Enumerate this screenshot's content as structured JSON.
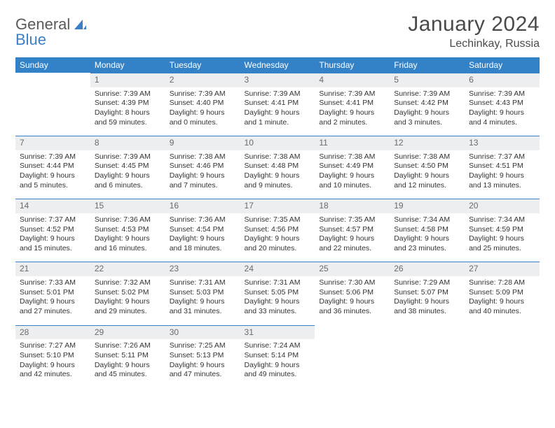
{
  "logo": {
    "word1": "General",
    "word2": "Blue"
  },
  "title": "January 2024",
  "location": "Lechinkay, Russia",
  "colors": {
    "header_bg": "#3382c8",
    "header_text": "#ffffff",
    "daynum_bg": "#eceef0",
    "daynum_text": "#6a6a6a",
    "border_accent": "#3b7fc4",
    "body_text": "#333333",
    "title_text": "#4a4a4a"
  },
  "weekdays": [
    "Sunday",
    "Monday",
    "Tuesday",
    "Wednesday",
    "Thursday",
    "Friday",
    "Saturday"
  ],
  "weeks": [
    [
      null,
      {
        "n": "1",
        "sr": "Sunrise: 7:39 AM",
        "ss": "Sunset: 4:39 PM",
        "d1": "Daylight: 8 hours",
        "d2": "and 59 minutes."
      },
      {
        "n": "2",
        "sr": "Sunrise: 7:39 AM",
        "ss": "Sunset: 4:40 PM",
        "d1": "Daylight: 9 hours",
        "d2": "and 0 minutes."
      },
      {
        "n": "3",
        "sr": "Sunrise: 7:39 AM",
        "ss": "Sunset: 4:41 PM",
        "d1": "Daylight: 9 hours",
        "d2": "and 1 minute."
      },
      {
        "n": "4",
        "sr": "Sunrise: 7:39 AM",
        "ss": "Sunset: 4:41 PM",
        "d1": "Daylight: 9 hours",
        "d2": "and 2 minutes."
      },
      {
        "n": "5",
        "sr": "Sunrise: 7:39 AM",
        "ss": "Sunset: 4:42 PM",
        "d1": "Daylight: 9 hours",
        "d2": "and 3 minutes."
      },
      {
        "n": "6",
        "sr": "Sunrise: 7:39 AM",
        "ss": "Sunset: 4:43 PM",
        "d1": "Daylight: 9 hours",
        "d2": "and 4 minutes."
      }
    ],
    [
      {
        "n": "7",
        "sr": "Sunrise: 7:39 AM",
        "ss": "Sunset: 4:44 PM",
        "d1": "Daylight: 9 hours",
        "d2": "and 5 minutes."
      },
      {
        "n": "8",
        "sr": "Sunrise: 7:39 AM",
        "ss": "Sunset: 4:45 PM",
        "d1": "Daylight: 9 hours",
        "d2": "and 6 minutes."
      },
      {
        "n": "9",
        "sr": "Sunrise: 7:38 AM",
        "ss": "Sunset: 4:46 PM",
        "d1": "Daylight: 9 hours",
        "d2": "and 7 minutes."
      },
      {
        "n": "10",
        "sr": "Sunrise: 7:38 AM",
        "ss": "Sunset: 4:48 PM",
        "d1": "Daylight: 9 hours",
        "d2": "and 9 minutes."
      },
      {
        "n": "11",
        "sr": "Sunrise: 7:38 AM",
        "ss": "Sunset: 4:49 PM",
        "d1": "Daylight: 9 hours",
        "d2": "and 10 minutes."
      },
      {
        "n": "12",
        "sr": "Sunrise: 7:38 AM",
        "ss": "Sunset: 4:50 PM",
        "d1": "Daylight: 9 hours",
        "d2": "and 12 minutes."
      },
      {
        "n": "13",
        "sr": "Sunrise: 7:37 AM",
        "ss": "Sunset: 4:51 PM",
        "d1": "Daylight: 9 hours",
        "d2": "and 13 minutes."
      }
    ],
    [
      {
        "n": "14",
        "sr": "Sunrise: 7:37 AM",
        "ss": "Sunset: 4:52 PM",
        "d1": "Daylight: 9 hours",
        "d2": "and 15 minutes."
      },
      {
        "n": "15",
        "sr": "Sunrise: 7:36 AM",
        "ss": "Sunset: 4:53 PM",
        "d1": "Daylight: 9 hours",
        "d2": "and 16 minutes."
      },
      {
        "n": "16",
        "sr": "Sunrise: 7:36 AM",
        "ss": "Sunset: 4:54 PM",
        "d1": "Daylight: 9 hours",
        "d2": "and 18 minutes."
      },
      {
        "n": "17",
        "sr": "Sunrise: 7:35 AM",
        "ss": "Sunset: 4:56 PM",
        "d1": "Daylight: 9 hours",
        "d2": "and 20 minutes."
      },
      {
        "n": "18",
        "sr": "Sunrise: 7:35 AM",
        "ss": "Sunset: 4:57 PM",
        "d1": "Daylight: 9 hours",
        "d2": "and 22 minutes."
      },
      {
        "n": "19",
        "sr": "Sunrise: 7:34 AM",
        "ss": "Sunset: 4:58 PM",
        "d1": "Daylight: 9 hours",
        "d2": "and 23 minutes."
      },
      {
        "n": "20",
        "sr": "Sunrise: 7:34 AM",
        "ss": "Sunset: 4:59 PM",
        "d1": "Daylight: 9 hours",
        "d2": "and 25 minutes."
      }
    ],
    [
      {
        "n": "21",
        "sr": "Sunrise: 7:33 AM",
        "ss": "Sunset: 5:01 PM",
        "d1": "Daylight: 9 hours",
        "d2": "and 27 minutes."
      },
      {
        "n": "22",
        "sr": "Sunrise: 7:32 AM",
        "ss": "Sunset: 5:02 PM",
        "d1": "Daylight: 9 hours",
        "d2": "and 29 minutes."
      },
      {
        "n": "23",
        "sr": "Sunrise: 7:31 AM",
        "ss": "Sunset: 5:03 PM",
        "d1": "Daylight: 9 hours",
        "d2": "and 31 minutes."
      },
      {
        "n": "24",
        "sr": "Sunrise: 7:31 AM",
        "ss": "Sunset: 5:05 PM",
        "d1": "Daylight: 9 hours",
        "d2": "and 33 minutes."
      },
      {
        "n": "25",
        "sr": "Sunrise: 7:30 AM",
        "ss": "Sunset: 5:06 PM",
        "d1": "Daylight: 9 hours",
        "d2": "and 36 minutes."
      },
      {
        "n": "26",
        "sr": "Sunrise: 7:29 AM",
        "ss": "Sunset: 5:07 PM",
        "d1": "Daylight: 9 hours",
        "d2": "and 38 minutes."
      },
      {
        "n": "27",
        "sr": "Sunrise: 7:28 AM",
        "ss": "Sunset: 5:09 PM",
        "d1": "Daylight: 9 hours",
        "d2": "and 40 minutes."
      }
    ],
    [
      {
        "n": "28",
        "sr": "Sunrise: 7:27 AM",
        "ss": "Sunset: 5:10 PM",
        "d1": "Daylight: 9 hours",
        "d2": "and 42 minutes."
      },
      {
        "n": "29",
        "sr": "Sunrise: 7:26 AM",
        "ss": "Sunset: 5:11 PM",
        "d1": "Daylight: 9 hours",
        "d2": "and 45 minutes."
      },
      {
        "n": "30",
        "sr": "Sunrise: 7:25 AM",
        "ss": "Sunset: 5:13 PM",
        "d1": "Daylight: 9 hours",
        "d2": "and 47 minutes."
      },
      {
        "n": "31",
        "sr": "Sunrise: 7:24 AM",
        "ss": "Sunset: 5:14 PM",
        "d1": "Daylight: 9 hours",
        "d2": "and 49 minutes."
      },
      null,
      null,
      null
    ]
  ]
}
